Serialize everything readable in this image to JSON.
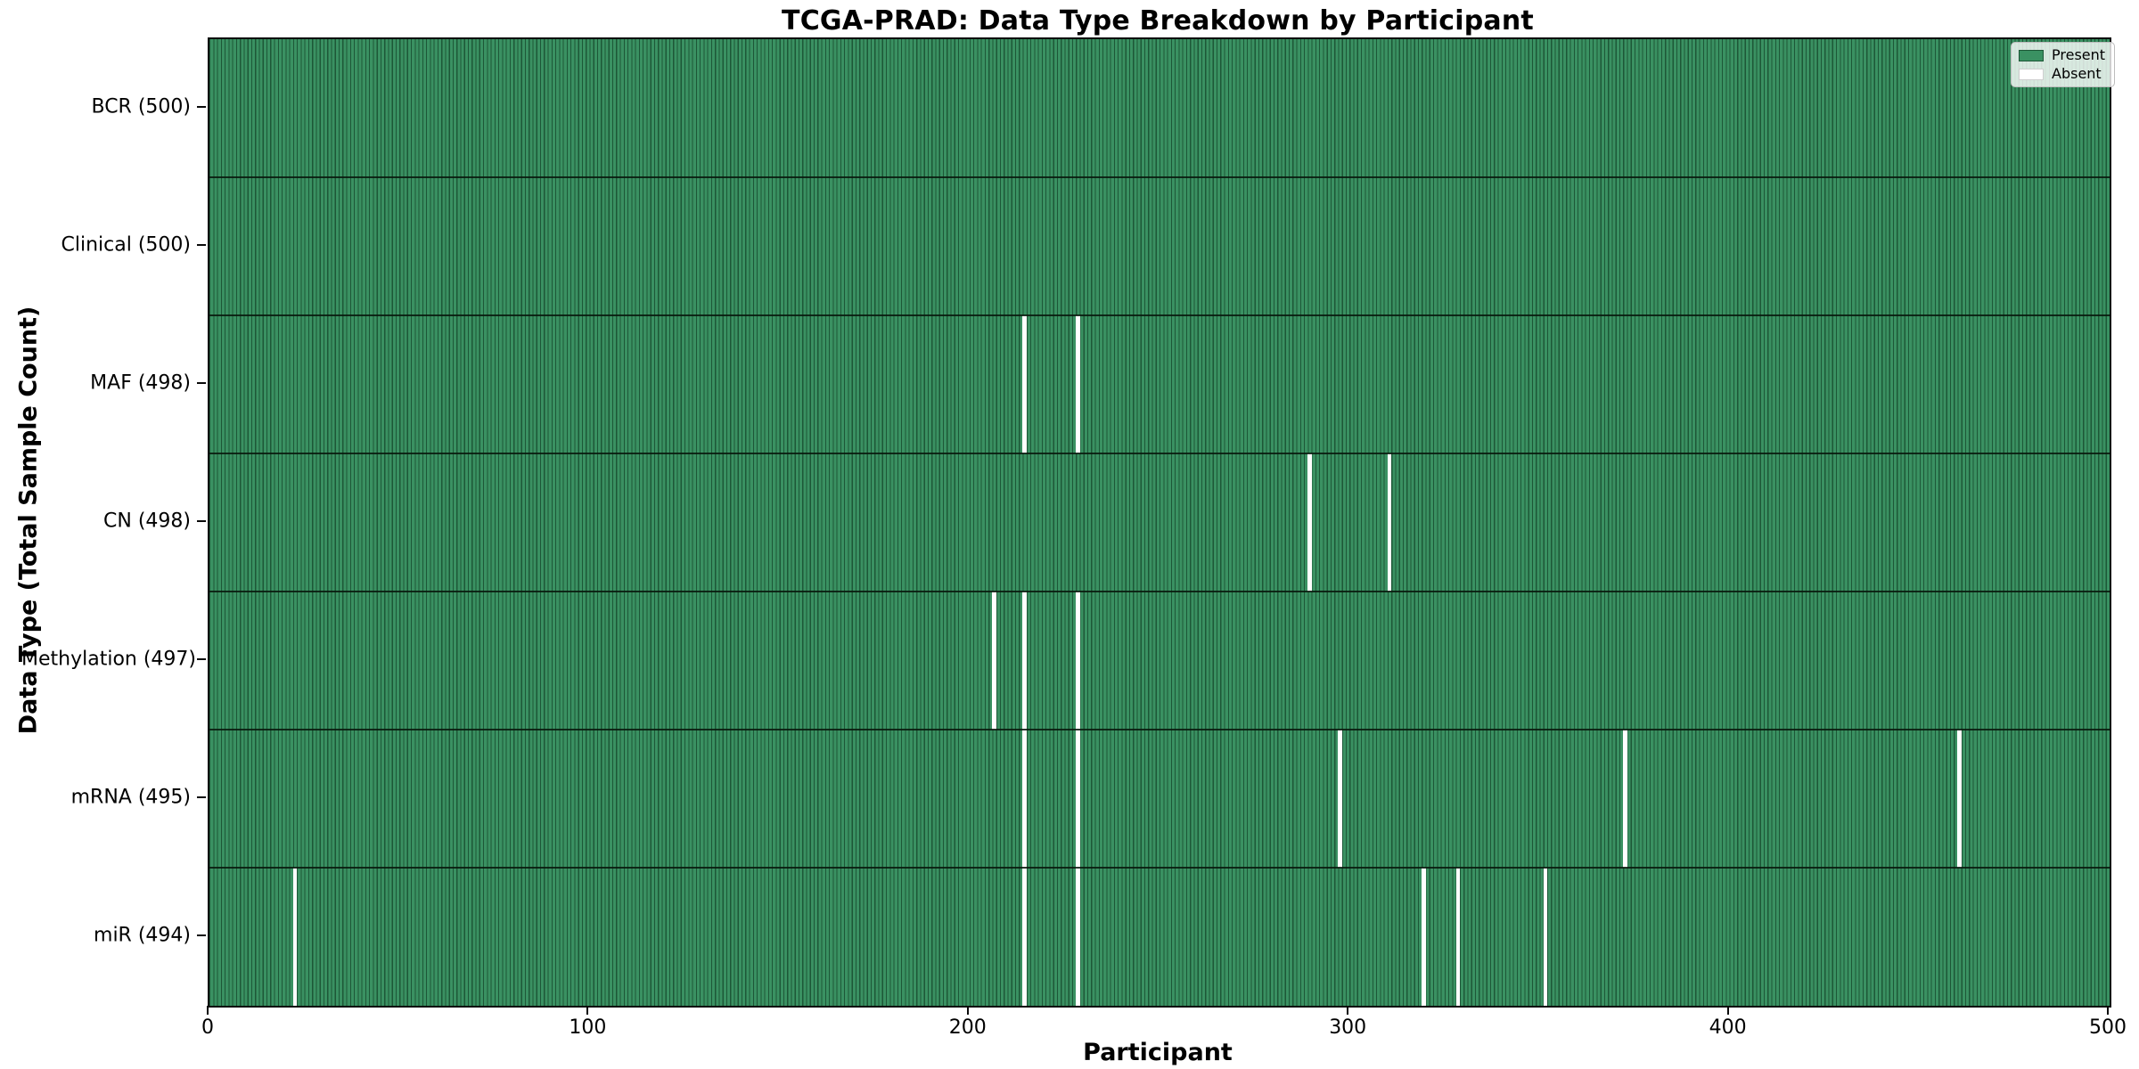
{
  "chart_data": {
    "type": "heatmap",
    "title": "TCGA-PRAD: Data Type Breakdown by Participant",
    "xlabel": "Participant",
    "ylabel": "Data Type (Total Sample Count)",
    "x_ticks": [
      0,
      100,
      200,
      300,
      400,
      500
    ],
    "xlim": [
      0,
      500
    ],
    "n_participants": 500,
    "grid": false,
    "legend_position": "upper right",
    "legend": [
      {
        "label": "Present",
        "swatch": "present"
      },
      {
        "label": "Absent",
        "swatch": "absent"
      }
    ],
    "colors": {
      "present": "#2e8b57",
      "present_fill": "#3a9162",
      "bar_edge": "#1d5737",
      "absent": "#ffffff"
    },
    "rows": [
      {
        "label": "BCR (500)",
        "name": "bcr",
        "total": 500,
        "absent_participants": []
      },
      {
        "label": "Clinical (500)",
        "name": "clinical",
        "total": 500,
        "absent_participants": []
      },
      {
        "label": "MAF (498)",
        "name": "maf",
        "total": 498,
        "absent_participants": [
          214,
          228
        ]
      },
      {
        "label": "CN (498)",
        "name": "cn",
        "total": 498,
        "absent_participants": [
          289,
          310
        ]
      },
      {
        "label": "Methylation (497)",
        "name": "methylation",
        "total": 497,
        "absent_participants": [
          206,
          214,
          228
        ]
      },
      {
        "label": "mRNA (495)",
        "name": "mrna",
        "total": 495,
        "absent_participants": [
          214,
          228,
          297,
          372,
          460
        ]
      },
      {
        "label": "miR (494)",
        "name": "mir",
        "total": 494,
        "absent_participants": [
          22,
          214,
          228,
          319,
          328,
          351
        ]
      }
    ]
  }
}
